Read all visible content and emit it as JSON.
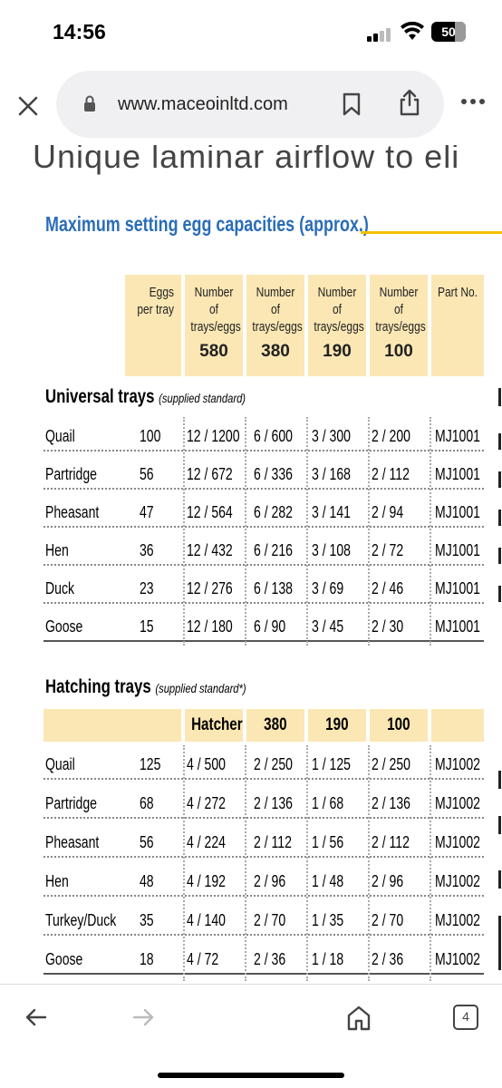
{
  "status": {
    "time": "14:56",
    "battery": "50"
  },
  "browser": {
    "url": "www.maceoinltd.com"
  },
  "page": {
    "cut_heading": "Unique  laminar airflow  to eli",
    "section_title": "Maximum setting egg capacities (approx.)",
    "header": {
      "eggs_per_tray": "Eggs per tray",
      "col_label": "Number of trays/eggs",
      "col_values": [
        "580",
        "380",
        "190",
        "100"
      ],
      "part_no": "Part No."
    },
    "universal": {
      "title": "Universal trays",
      "note": "(supplied standard)",
      "rows": [
        {
          "name": "Quail",
          "eggs": "100",
          "c1": "12 / 1200",
          "c2": "6 / 600",
          "c3": "3 / 300",
          "c4": "2 / 200",
          "part": "MJ1001"
        },
        {
          "name": "Partridge",
          "eggs": "56",
          "c1": "12 / 672",
          "c2": "6 / 336",
          "c3": "3 / 168",
          "c4": "2 / 112",
          "part": "MJ1001"
        },
        {
          "name": "Pheasant",
          "eggs": "47",
          "c1": "12 / 564",
          "c2": "6 / 282",
          "c3": "3 / 141",
          "c4": "2 / 94",
          "part": "MJ1001"
        },
        {
          "name": "Hen",
          "eggs": "36",
          "c1": "12 / 432",
          "c2": "6 / 216",
          "c3": "3 / 108",
          "c4": "2 / 72",
          "part": "MJ1001"
        },
        {
          "name": "Duck",
          "eggs": "23",
          "c1": "12 / 276",
          "c2": "6 / 138",
          "c3": "3 / 69",
          "c4": "2 / 46",
          "part": "MJ1001"
        },
        {
          "name": "Goose",
          "eggs": "15",
          "c1": "12 / 180",
          "c2": "6 / 90",
          "c3": "3 / 45",
          "c4": "2 / 30",
          "part": "MJ1001"
        }
      ]
    },
    "hatching": {
      "title": "Hatching trays",
      "note": "(supplied standard*)",
      "header": [
        "Hatcher",
        "380",
        "190",
        "100"
      ],
      "rows": [
        {
          "name": "Quail",
          "eggs": "125",
          "c1": "4 / 500",
          "c2": "2 / 250",
          "c3": "1 / 125",
          "c4": "2 / 250",
          "part": "MJ1002"
        },
        {
          "name": "Partridge",
          "eggs": "68",
          "c1": "4 / 272",
          "c2": "2 / 136",
          "c3": "1 / 68",
          "c4": "2 / 136",
          "part": "MJ1002"
        },
        {
          "name": "Pheasant",
          "eggs": "56",
          "c1": "4 / 224",
          "c2": "2 / 112",
          "c3": "1 / 56",
          "c4": "2 / 112",
          "part": "MJ1002"
        },
        {
          "name": "Hen",
          "eggs": "48",
          "c1": "4 / 192",
          "c2": "2 / 96",
          "c3": "1 / 48",
          "c4": "2 / 96",
          "part": "MJ1002"
        },
        {
          "name": "Turkey/Duck",
          "eggs": "35",
          "c1": "4 / 140",
          "c2": "2 / 70",
          "c3": "1 / 35",
          "c4": "2 / 70",
          "part": "MJ1002"
        },
        {
          "name": "Goose",
          "eggs": "18",
          "c1": "4 / 72",
          "c2": "2 / 36",
          "c3": "1 / 18",
          "c4": "2 / 36",
          "part": "MJ1002"
        }
      ]
    }
  },
  "nav": {
    "tab_count": "4"
  }
}
